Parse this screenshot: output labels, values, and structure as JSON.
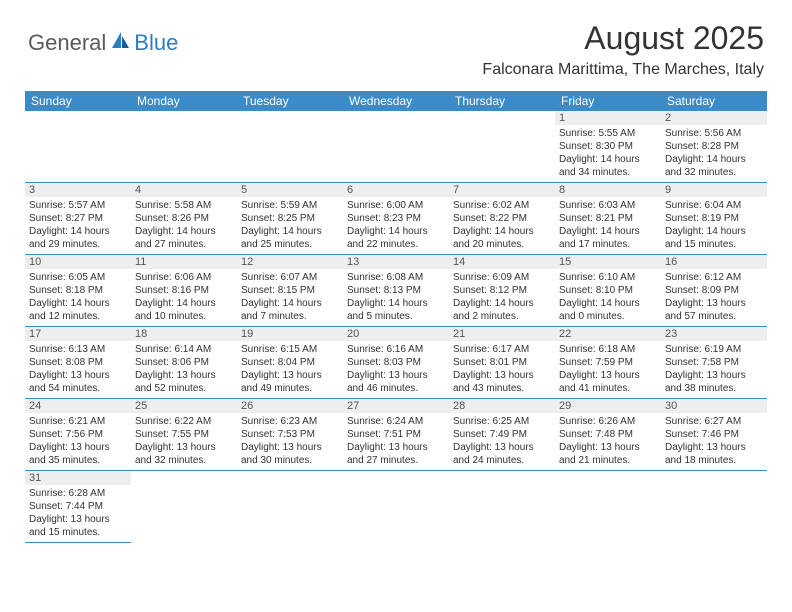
{
  "brand": {
    "part1": "General",
    "part2": "Blue"
  },
  "title": "August 2025",
  "location": "Falconara Marittima, The Marches, Italy",
  "colors": {
    "header_bg": "#3b8bc9",
    "header_text": "#ffffff",
    "daynum_bg": "#eeeeee",
    "border": "#3b8bc9",
    "logo_gray": "#5a5a5a",
    "logo_blue": "#2e7cc0"
  },
  "day_headers": [
    "Sunday",
    "Monday",
    "Tuesday",
    "Wednesday",
    "Thursday",
    "Friday",
    "Saturday"
  ],
  "weeks": [
    [
      null,
      null,
      null,
      null,
      null,
      {
        "n": "1",
        "sr": "Sunrise: 5:55 AM",
        "ss": "Sunset: 8:30 PM",
        "d1": "Daylight: 14 hours",
        "d2": "and 34 minutes."
      },
      {
        "n": "2",
        "sr": "Sunrise: 5:56 AM",
        "ss": "Sunset: 8:28 PM",
        "d1": "Daylight: 14 hours",
        "d2": "and 32 minutes."
      }
    ],
    [
      {
        "n": "3",
        "sr": "Sunrise: 5:57 AM",
        "ss": "Sunset: 8:27 PM",
        "d1": "Daylight: 14 hours",
        "d2": "and 29 minutes."
      },
      {
        "n": "4",
        "sr": "Sunrise: 5:58 AM",
        "ss": "Sunset: 8:26 PM",
        "d1": "Daylight: 14 hours",
        "d2": "and 27 minutes."
      },
      {
        "n": "5",
        "sr": "Sunrise: 5:59 AM",
        "ss": "Sunset: 8:25 PM",
        "d1": "Daylight: 14 hours",
        "d2": "and 25 minutes."
      },
      {
        "n": "6",
        "sr": "Sunrise: 6:00 AM",
        "ss": "Sunset: 8:23 PM",
        "d1": "Daylight: 14 hours",
        "d2": "and 22 minutes."
      },
      {
        "n": "7",
        "sr": "Sunrise: 6:02 AM",
        "ss": "Sunset: 8:22 PM",
        "d1": "Daylight: 14 hours",
        "d2": "and 20 minutes."
      },
      {
        "n": "8",
        "sr": "Sunrise: 6:03 AM",
        "ss": "Sunset: 8:21 PM",
        "d1": "Daylight: 14 hours",
        "d2": "and 17 minutes."
      },
      {
        "n": "9",
        "sr": "Sunrise: 6:04 AM",
        "ss": "Sunset: 8:19 PM",
        "d1": "Daylight: 14 hours",
        "d2": "and 15 minutes."
      }
    ],
    [
      {
        "n": "10",
        "sr": "Sunrise: 6:05 AM",
        "ss": "Sunset: 8:18 PM",
        "d1": "Daylight: 14 hours",
        "d2": "and 12 minutes."
      },
      {
        "n": "11",
        "sr": "Sunrise: 6:06 AM",
        "ss": "Sunset: 8:16 PM",
        "d1": "Daylight: 14 hours",
        "d2": "and 10 minutes."
      },
      {
        "n": "12",
        "sr": "Sunrise: 6:07 AM",
        "ss": "Sunset: 8:15 PM",
        "d1": "Daylight: 14 hours",
        "d2": "and 7 minutes."
      },
      {
        "n": "13",
        "sr": "Sunrise: 6:08 AM",
        "ss": "Sunset: 8:13 PM",
        "d1": "Daylight: 14 hours",
        "d2": "and 5 minutes."
      },
      {
        "n": "14",
        "sr": "Sunrise: 6:09 AM",
        "ss": "Sunset: 8:12 PM",
        "d1": "Daylight: 14 hours",
        "d2": "and 2 minutes."
      },
      {
        "n": "15",
        "sr": "Sunrise: 6:10 AM",
        "ss": "Sunset: 8:10 PM",
        "d1": "Daylight: 14 hours",
        "d2": "and 0 minutes."
      },
      {
        "n": "16",
        "sr": "Sunrise: 6:12 AM",
        "ss": "Sunset: 8:09 PM",
        "d1": "Daylight: 13 hours",
        "d2": "and 57 minutes."
      }
    ],
    [
      {
        "n": "17",
        "sr": "Sunrise: 6:13 AM",
        "ss": "Sunset: 8:08 PM",
        "d1": "Daylight: 13 hours",
        "d2": "and 54 minutes."
      },
      {
        "n": "18",
        "sr": "Sunrise: 6:14 AM",
        "ss": "Sunset: 8:06 PM",
        "d1": "Daylight: 13 hours",
        "d2": "and 52 minutes."
      },
      {
        "n": "19",
        "sr": "Sunrise: 6:15 AM",
        "ss": "Sunset: 8:04 PM",
        "d1": "Daylight: 13 hours",
        "d2": "and 49 minutes."
      },
      {
        "n": "20",
        "sr": "Sunrise: 6:16 AM",
        "ss": "Sunset: 8:03 PM",
        "d1": "Daylight: 13 hours",
        "d2": "and 46 minutes."
      },
      {
        "n": "21",
        "sr": "Sunrise: 6:17 AM",
        "ss": "Sunset: 8:01 PM",
        "d1": "Daylight: 13 hours",
        "d2": "and 43 minutes."
      },
      {
        "n": "22",
        "sr": "Sunrise: 6:18 AM",
        "ss": "Sunset: 7:59 PM",
        "d1": "Daylight: 13 hours",
        "d2": "and 41 minutes."
      },
      {
        "n": "23",
        "sr": "Sunrise: 6:19 AM",
        "ss": "Sunset: 7:58 PM",
        "d1": "Daylight: 13 hours",
        "d2": "and 38 minutes."
      }
    ],
    [
      {
        "n": "24",
        "sr": "Sunrise: 6:21 AM",
        "ss": "Sunset: 7:56 PM",
        "d1": "Daylight: 13 hours",
        "d2": "and 35 minutes."
      },
      {
        "n": "25",
        "sr": "Sunrise: 6:22 AM",
        "ss": "Sunset: 7:55 PM",
        "d1": "Daylight: 13 hours",
        "d2": "and 32 minutes."
      },
      {
        "n": "26",
        "sr": "Sunrise: 6:23 AM",
        "ss": "Sunset: 7:53 PM",
        "d1": "Daylight: 13 hours",
        "d2": "and 30 minutes."
      },
      {
        "n": "27",
        "sr": "Sunrise: 6:24 AM",
        "ss": "Sunset: 7:51 PM",
        "d1": "Daylight: 13 hours",
        "d2": "and 27 minutes."
      },
      {
        "n": "28",
        "sr": "Sunrise: 6:25 AM",
        "ss": "Sunset: 7:49 PM",
        "d1": "Daylight: 13 hours",
        "d2": "and 24 minutes."
      },
      {
        "n": "29",
        "sr": "Sunrise: 6:26 AM",
        "ss": "Sunset: 7:48 PM",
        "d1": "Daylight: 13 hours",
        "d2": "and 21 minutes."
      },
      {
        "n": "30",
        "sr": "Sunrise: 6:27 AM",
        "ss": "Sunset: 7:46 PM",
        "d1": "Daylight: 13 hours",
        "d2": "and 18 minutes."
      }
    ],
    [
      {
        "n": "31",
        "sr": "Sunrise: 6:28 AM",
        "ss": "Sunset: 7:44 PM",
        "d1": "Daylight: 13 hours",
        "d2": "and 15 minutes."
      },
      null,
      null,
      null,
      null,
      null,
      null
    ]
  ]
}
